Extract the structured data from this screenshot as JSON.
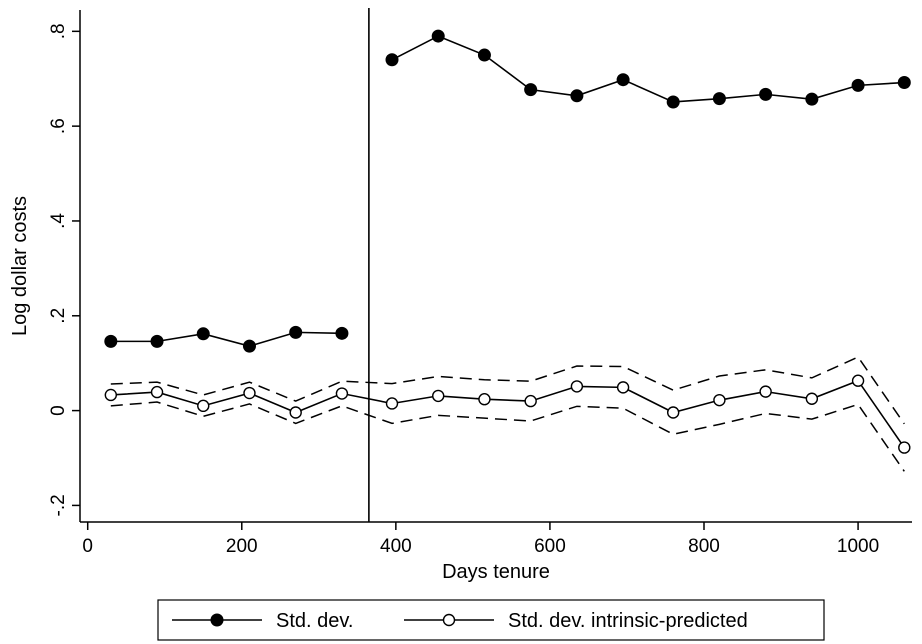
{
  "chart_data": {
    "type": "line",
    "xlabel": "Days tenure",
    "ylabel": "Log dollar costs",
    "xlim": [
      -10,
      1070
    ],
    "ylim": [
      -0.235,
      0.845
    ],
    "xticks": [
      0,
      200,
      400,
      600,
      800,
      1000
    ],
    "xtick_labels": [
      "0",
      "200",
      "400",
      "600",
      "800",
      "1000"
    ],
    "yticks": [
      -0.2,
      0,
      0.2,
      0.4,
      0.6,
      0.8
    ],
    "ytick_labels": [
      "-.2",
      "0",
      ".2",
      ".4",
      ".6",
      ".8"
    ],
    "grid": false,
    "legend_position": "bottom",
    "vline": 365,
    "series": [
      {
        "name": "Std. dev.",
        "marker": "filled-circle",
        "line_style": "solid",
        "color": "#000000",
        "segments": [
          {
            "x": [
              30,
              90,
              150,
              210,
              270,
              330
            ],
            "y": [
              0.146,
              0.146,
              0.162,
              0.136,
              0.165,
              0.163
            ]
          },
          {
            "x": [
              395,
              455,
              515,
              575,
              635,
              695,
              760,
              820,
              880,
              940,
              1000,
              1060
            ],
            "y": [
              0.74,
              0.79,
              0.75,
              0.677,
              0.664,
              0.698,
              0.651,
              0.658,
              0.667,
              0.657,
              0.686,
              0.692
            ]
          }
        ]
      },
      {
        "name": "Std. dev. intrinsic-predicted",
        "marker": "hollow-circle",
        "line_style": "solid",
        "color": "#000000",
        "x": [
          30,
          90,
          150,
          210,
          270,
          330,
          395,
          455,
          515,
          575,
          635,
          695,
          760,
          820,
          880,
          940,
          1000,
          1060
        ],
        "y": [
          0.033,
          0.039,
          0.01,
          0.037,
          -0.004,
          0.036,
          0.015,
          0.031,
          0.024,
          0.02,
          0.051,
          0.049,
          -0.004,
          0.022,
          0.04,
          0.025,
          0.063,
          -0.078
        ]
      }
    ],
    "bands": [
      {
        "line_style": "dashed",
        "x": [
          30,
          90,
          150,
          210,
          270,
          330,
          395,
          455,
          515,
          575,
          635,
          695,
          760,
          820,
          880,
          940,
          1000,
          1060
        ],
        "upper": [
          0.056,
          0.06,
          0.033,
          0.06,
          0.02,
          0.062,
          0.057,
          0.072,
          0.065,
          0.062,
          0.094,
          0.093,
          0.043,
          0.073,
          0.086,
          0.069,
          0.113,
          -0.028
        ],
        "lower": [
          0.01,
          0.018,
          -0.012,
          0.014,
          -0.027,
          0.01,
          -0.027,
          -0.01,
          -0.016,
          -0.022,
          0.009,
          0.005,
          -0.05,
          -0.029,
          -0.006,
          -0.018,
          0.013,
          -0.128
        ]
      }
    ]
  }
}
